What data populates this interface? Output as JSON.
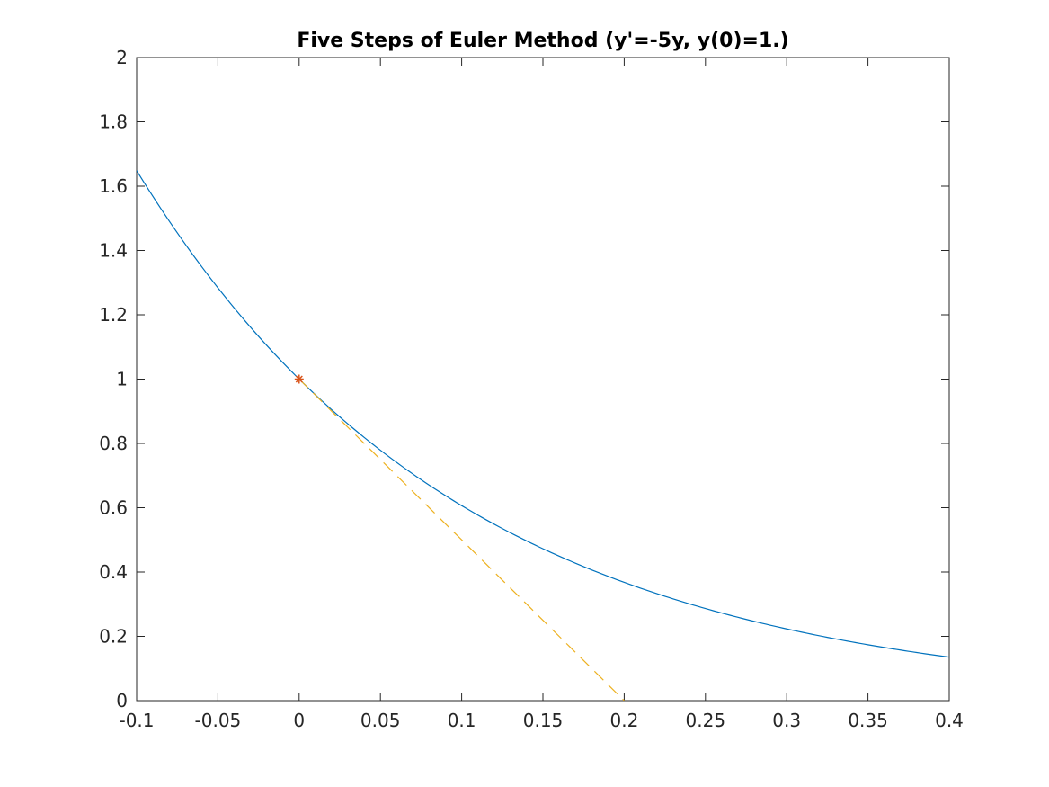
{
  "chart_data": {
    "type": "line",
    "title": "Five Steps of Euler Method (y'=-5y, y(0)=1.)",
    "xlabel": "",
    "ylabel": "",
    "xlim": [
      -0.1,
      0.4
    ],
    "ylim": [
      0,
      2
    ],
    "x_ticks": [
      -0.1,
      -0.05,
      0,
      0.05,
      0.1,
      0.15,
      0.2,
      0.25,
      0.3,
      0.35,
      0.4
    ],
    "x_tick_labels": [
      "-0.1",
      "-0.05",
      "0",
      "0.05",
      "0.1",
      "0.15",
      "0.2",
      "0.25",
      "0.3",
      "0.35",
      "0.4"
    ],
    "y_ticks": [
      0,
      0.2,
      0.4,
      0.6,
      0.8,
      1,
      1.2,
      1.4,
      1.6,
      1.8,
      2
    ],
    "y_tick_labels": [
      "0",
      "0.2",
      "0.4",
      "0.6",
      "0.8",
      "1",
      "1.2",
      "1.4",
      "1.6",
      "1.8",
      "2"
    ],
    "grid": false,
    "legend": "none",
    "series": [
      {
        "style": "solid",
        "color": "#0072BD",
        "x": [
          -0.1,
          -0.075,
          -0.05,
          -0.025,
          0,
          0.025,
          0.05,
          0.075,
          0.1,
          0.125,
          0.15,
          0.175,
          0.2,
          0.225,
          0.25,
          0.275,
          0.3,
          0.325,
          0.35,
          0.375,
          0.4
        ],
        "y": [
          1.6487,
          1.455,
          1.284,
          1.1331,
          1.0,
          0.8825,
          0.7788,
          0.6873,
          0.6065,
          0.5353,
          0.4724,
          0.4169,
          0.3679,
          0.3247,
          0.2865,
          0.2528,
          0.2231,
          0.1969,
          0.1738,
          0.1534,
          0.1353
        ]
      },
      {
        "style": "dashed",
        "color": "#EDB120",
        "x": [
          0,
          0.2
        ],
        "y": [
          1,
          0
        ]
      },
      {
        "style": "marker",
        "marker": "asterisk",
        "color": "#D95319",
        "x": [
          0
        ],
        "y": [
          1
        ]
      }
    ]
  }
}
